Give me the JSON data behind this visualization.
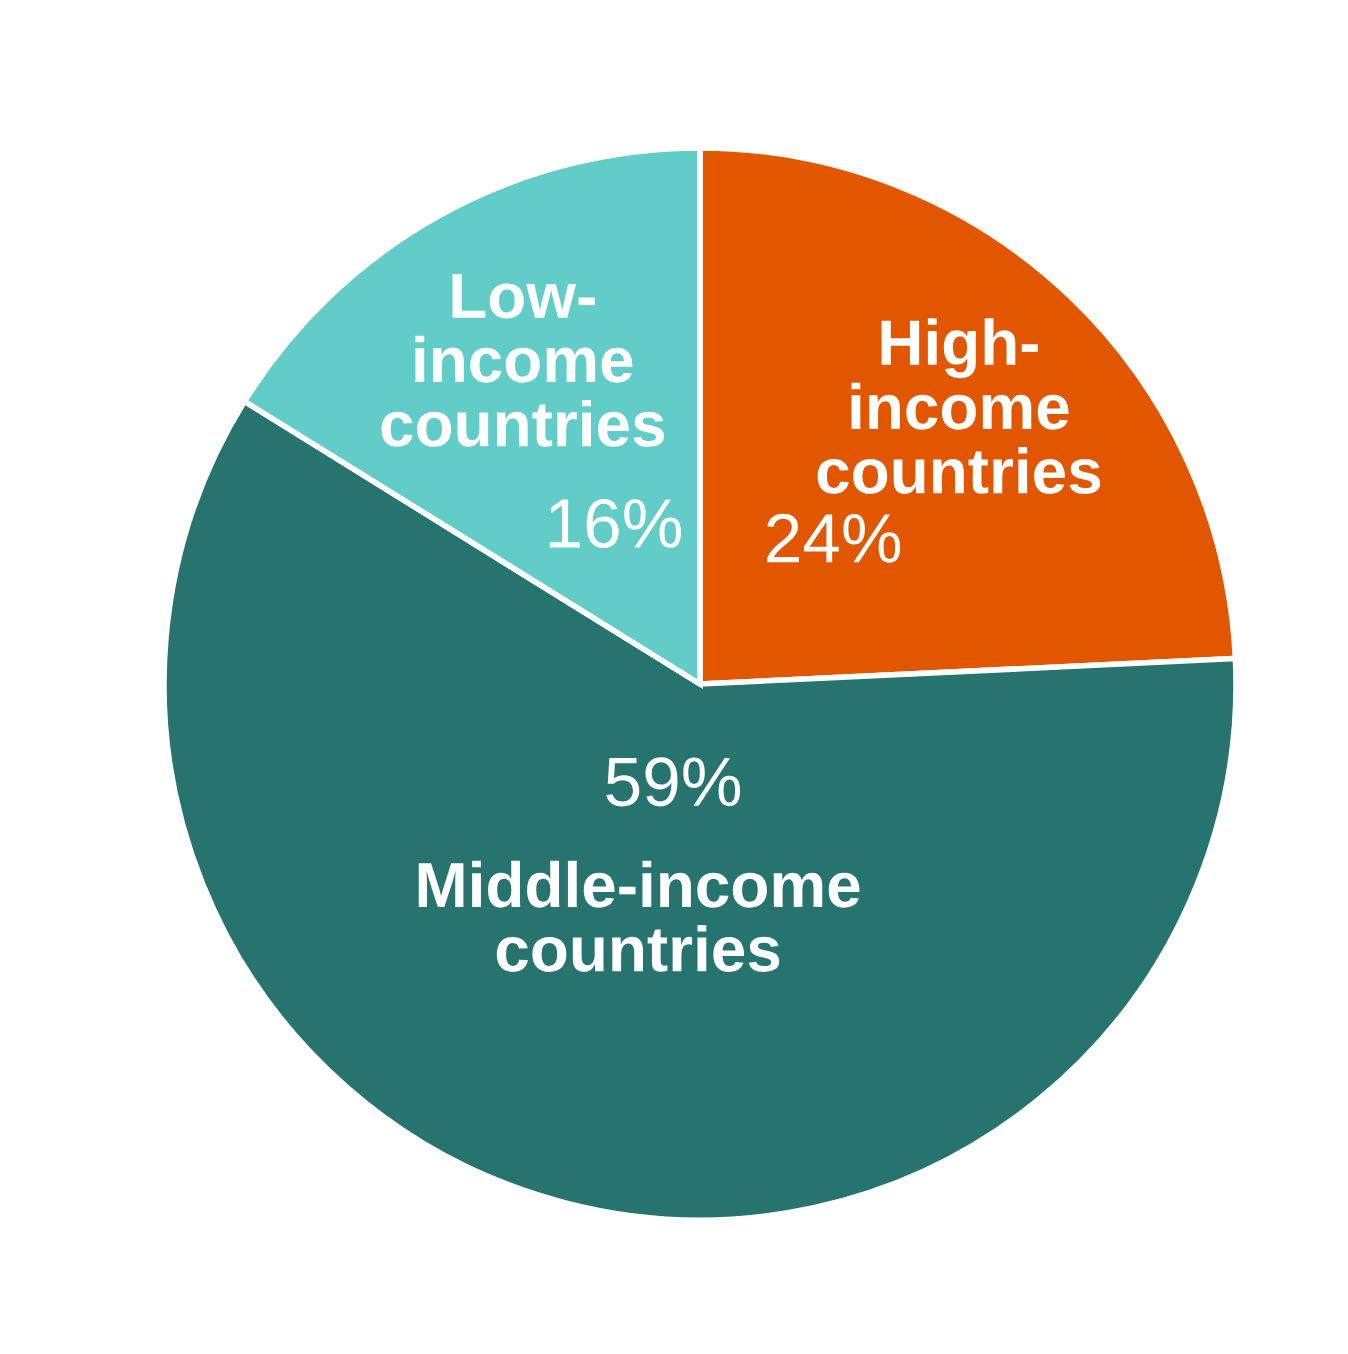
{
  "chart_data": {
    "type": "pie",
    "categories": [
      "High-\nincome\ncountries",
      "Middle-income\ncountries",
      "Low-\nincome\ncountries"
    ],
    "values": [
      24,
      59,
      16
    ],
    "value_labels": [
      "24%",
      "59%",
      "16%"
    ],
    "colors": [
      "#e35600",
      "#26736f",
      "#62ccc8"
    ]
  }
}
